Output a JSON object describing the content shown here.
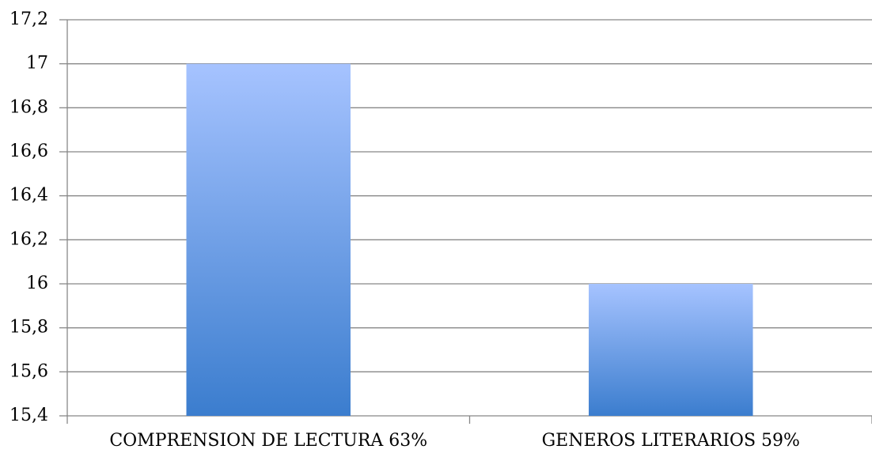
{
  "chart_data": {
    "type": "bar",
    "categories": [
      "COMPRENSION DE LECTURA 63%",
      "GENEROS LITERARIOS 59%"
    ],
    "values": [
      17,
      16
    ],
    "gradient": [
      "#a6c3ff",
      "#3b7dce"
    ],
    "ylim": [
      15.4,
      17.2
    ],
    "yticks": [
      {
        "value": 15.4,
        "label": "15,4"
      },
      {
        "value": 15.6,
        "label": "15,6"
      },
      {
        "value": 15.8,
        "label": "15,8"
      },
      16,
      {
        "value": 16.2,
        "label": "16,2"
      },
      {
        "value": 16.4,
        "label": "16,4"
      },
      {
        "value": 16.6,
        "label": "16,6"
      },
      {
        "value": 16.8,
        "label": "16,8"
      },
      17,
      {
        "value": 17.2,
        "label": "17,2"
      }
    ],
    "grid": true
  }
}
